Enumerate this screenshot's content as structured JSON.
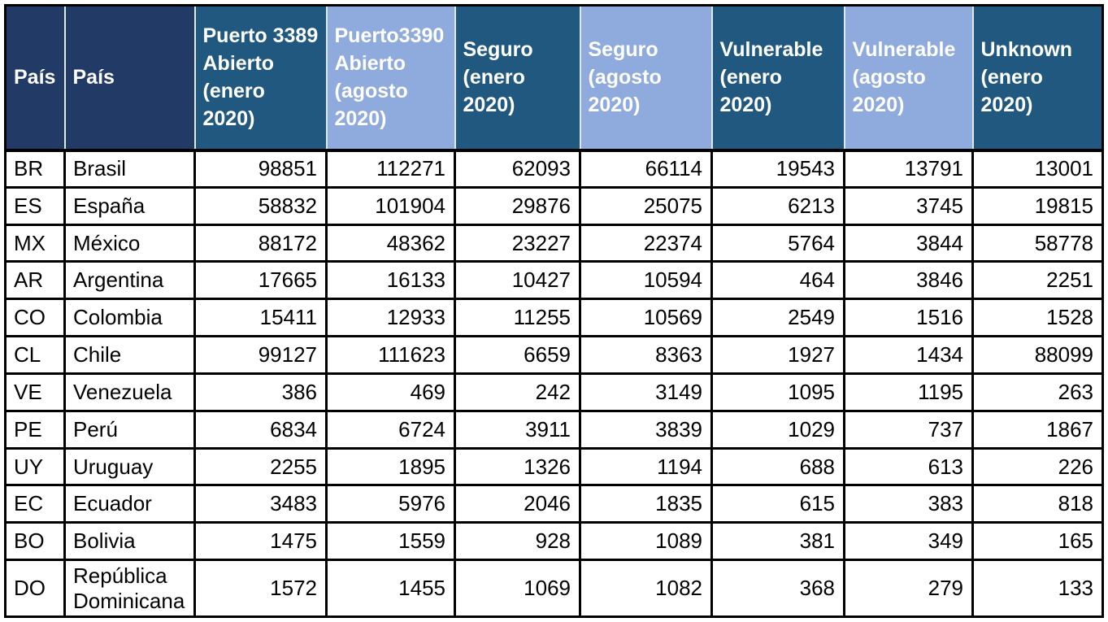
{
  "colors": {
    "header_dark": "#223A66",
    "header_medium": "#20587F",
    "header_light": "#8FAADC",
    "header_text": "#FFFFFF",
    "body_text": "#000000",
    "grid_border": "#000000",
    "header_divider": "#DFE7F3"
  },
  "chart_data": {
    "type": "table",
    "columns": [
      {
        "label": "País",
        "tone": "dark"
      },
      {
        "label": "País",
        "tone": "dark"
      },
      {
        "label": "Puerto 3389 Abierto (enero 2020)",
        "tone": "medium"
      },
      {
        "label": "Puerto3390 Abierto (agosto 2020)",
        "tone": "light"
      },
      {
        "label": "Seguro (enero 2020)",
        "tone": "medium"
      },
      {
        "label": "Seguro (agosto 2020)",
        "tone": "light"
      },
      {
        "label": "Vulnerable (enero 2020)",
        "tone": "medium"
      },
      {
        "label": "Vulnerable (agosto 2020)",
        "tone": "light"
      },
      {
        "label": "Unknown (enero 2020)",
        "tone": "medium"
      }
    ],
    "rows": [
      {
        "code": "BR",
        "name": "Brasil",
        "values": [
          98851,
          112271,
          62093,
          66114,
          19543,
          13791,
          13001
        ]
      },
      {
        "code": "ES",
        "name": "España",
        "values": [
          58832,
          101904,
          29876,
          25075,
          6213,
          3745,
          19815
        ]
      },
      {
        "code": "MX",
        "name": "México",
        "values": [
          88172,
          48362,
          23227,
          22374,
          5764,
          3844,
          58778
        ]
      },
      {
        "code": "AR",
        "name": "Argentina",
        "values": [
          17665,
          16133,
          10427,
          10594,
          464,
          3846,
          2251
        ]
      },
      {
        "code": "CO",
        "name": "Colombia",
        "values": [
          15411,
          12933,
          11255,
          10569,
          2549,
          1516,
          1528
        ]
      },
      {
        "code": "CL",
        "name": "Chile",
        "values": [
          99127,
          111623,
          6659,
          8363,
          1927,
          1434,
          88099
        ]
      },
      {
        "code": "VE",
        "name": "Venezuela",
        "values": [
          386,
          469,
          242,
          3149,
          1095,
          1195,
          263
        ]
      },
      {
        "code": "PE",
        "name": "Perú",
        "values": [
          6834,
          6724,
          3911,
          3839,
          1029,
          737,
          1867
        ]
      },
      {
        "code": "UY",
        "name": "Uruguay",
        "values": [
          2255,
          1895,
          1326,
          1194,
          688,
          613,
          226
        ]
      },
      {
        "code": "EC",
        "name": "Ecuador",
        "values": [
          3483,
          5976,
          2046,
          1835,
          615,
          383,
          818
        ]
      },
      {
        "code": "BO",
        "name": "Bolivia",
        "values": [
          1475,
          1559,
          928,
          1089,
          381,
          349,
          165
        ]
      },
      {
        "code": "DO",
        "name": "República Dominicana",
        "values": [
          1572,
          1455,
          1069,
          1082,
          368,
          279,
          133
        ]
      }
    ]
  }
}
